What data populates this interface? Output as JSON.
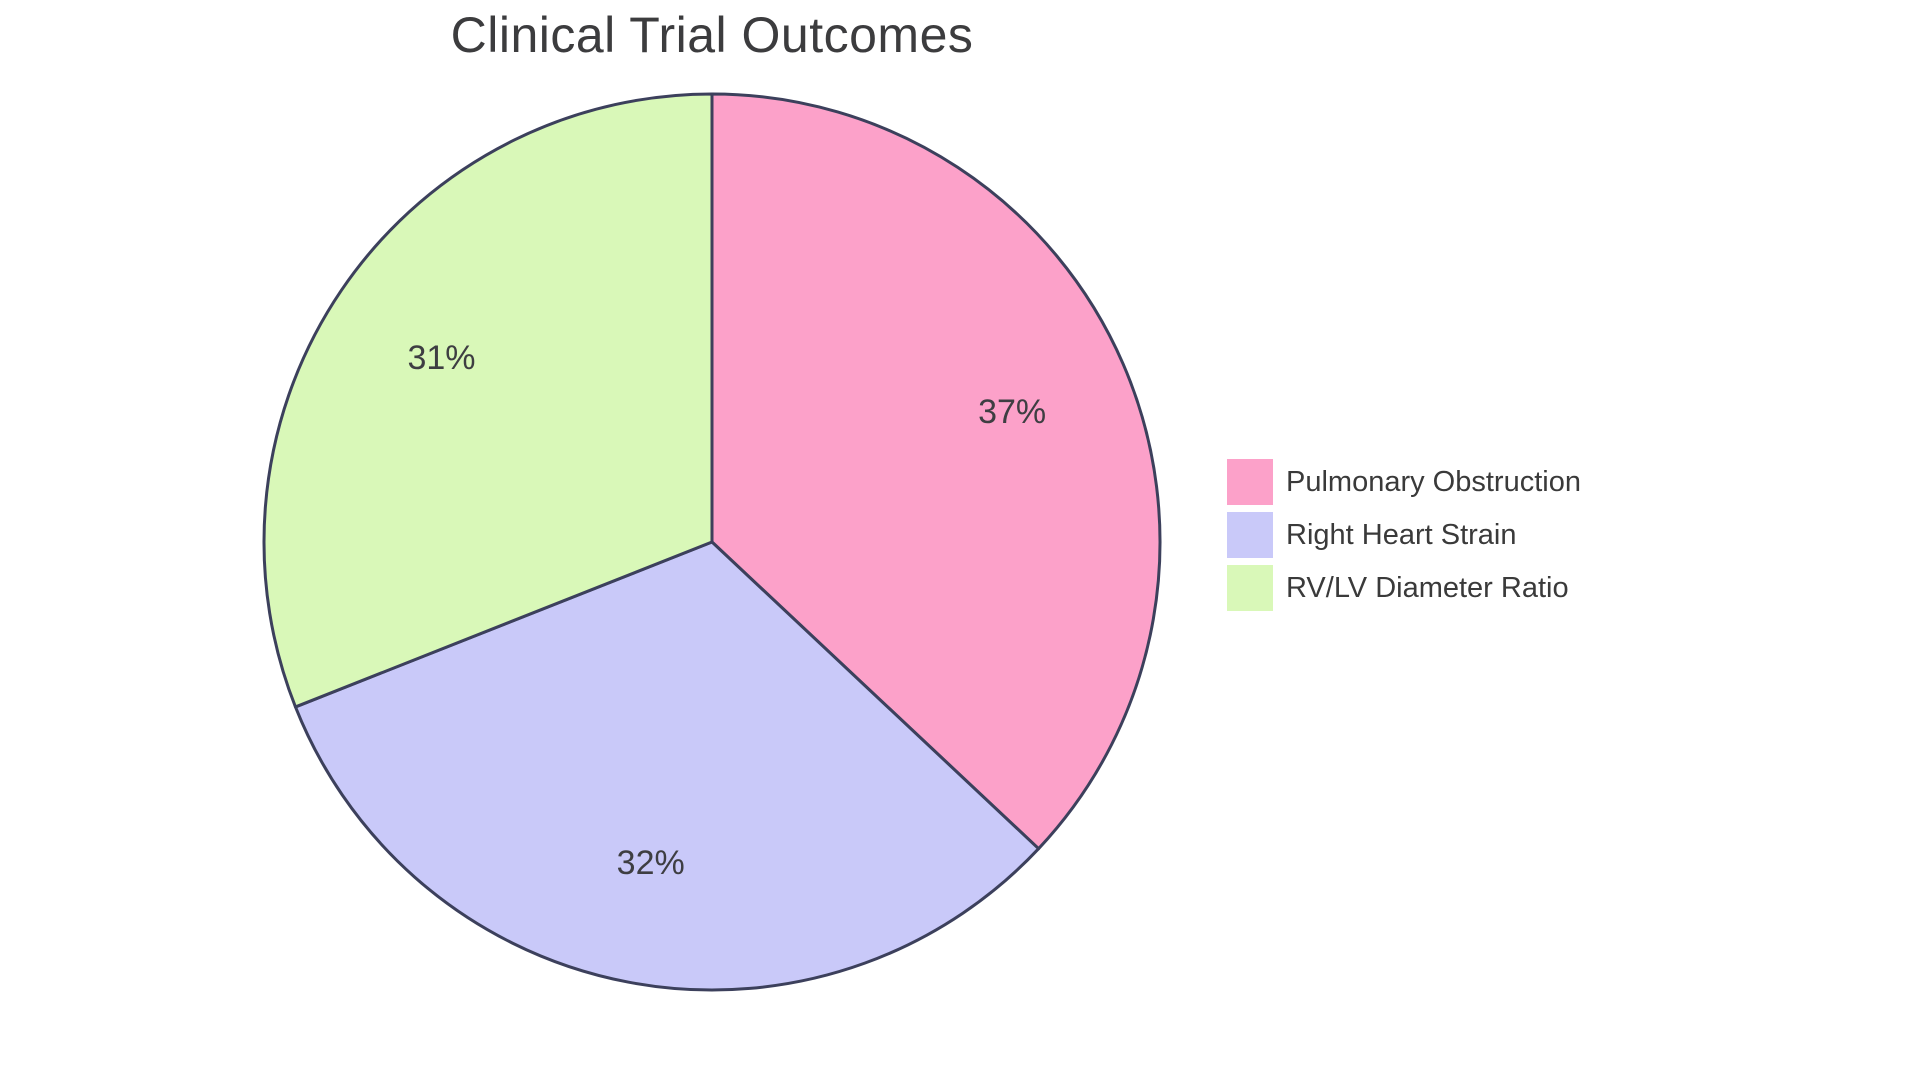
{
  "chart_data": {
    "type": "pie",
    "title": "Clinical Trial Outcomes",
    "categories": [
      "Pulmonary Obstruction",
      "Right Heart Strain",
      "RV/LV Diameter Ratio"
    ],
    "values": [
      37,
      32,
      31
    ],
    "percent_labels": [
      "37%",
      "32%",
      "31%"
    ],
    "colors": [
      "#FCA1C9",
      "#C9C9F9",
      "#D9F8B8"
    ],
    "stroke_color": "#3C405C",
    "label_color": "#3E3E42",
    "title_color": "#3C3C3E",
    "legend_text_color": "#3A3A3A",
    "start_angle": "top",
    "direction": "clockwise",
    "legend_position": "right",
    "background_color": "#FFFFFF"
  }
}
